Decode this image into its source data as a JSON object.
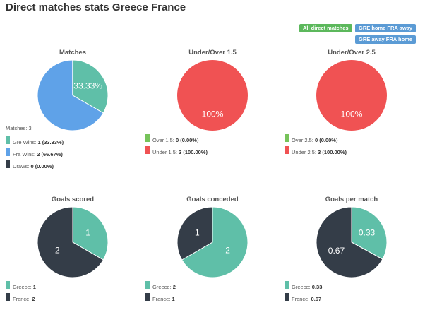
{
  "header": {
    "title": "Direct matches stats Greece France"
  },
  "filters": {
    "all_label": "All direct matches",
    "home_label": "GRE home FRA away",
    "away_label": "GRE away FRA home"
  },
  "colors": {
    "teal": "#5fbfa8",
    "blue": "#5fa2e8",
    "dark": "#343d48",
    "green": "#76c35a",
    "red": "#f05253"
  },
  "panels": [
    {
      "title": "Matches",
      "summary": "Matches: 3",
      "legend": [
        {
          "label": "Gre Wins:",
          "value": "1 (33.33%)",
          "color": "#5fbfa8"
        },
        {
          "label": "Fra Wins:",
          "value": "2 (66.67%)",
          "color": "#5fa2e8"
        },
        {
          "label": "Draws:",
          "value": "0 (0.00%)",
          "color": "#343d48"
        }
      ]
    },
    {
      "title": "Under/Over 1.5",
      "summary": "",
      "legend": [
        {
          "label": "Over 1.5:",
          "value": "0 (0.00%)",
          "color": "#76c35a"
        },
        {
          "label": "Under 1.5:",
          "value": "3 (100.00%)",
          "color": "#f05253"
        }
      ]
    },
    {
      "title": "Under/Over 2.5",
      "summary": "",
      "legend": [
        {
          "label": "Over 2.5:",
          "value": "0 (0.00%)",
          "color": "#76c35a"
        },
        {
          "label": "Under 2.5:",
          "value": "3 (100.00%)",
          "color": "#f05253"
        }
      ]
    },
    {
      "title": "Goals scored",
      "summary": "",
      "legend": [
        {
          "label": "Greece:",
          "value": "1",
          "color": "#5fbfa8"
        },
        {
          "label": "France:",
          "value": "2",
          "color": "#343d48"
        }
      ]
    },
    {
      "title": "Goals conceded",
      "summary": "",
      "legend": [
        {
          "label": "Greece:",
          "value": "2",
          "color": "#5fbfa8"
        },
        {
          "label": "France:",
          "value": "1",
          "color": "#343d48"
        }
      ]
    },
    {
      "title": "Goals per match",
      "summary": "",
      "legend": [
        {
          "label": "Greece:",
          "value": "0.33",
          "color": "#5fbfa8"
        },
        {
          "label": "France:",
          "value": "0.67",
          "color": "#343d48"
        }
      ]
    }
  ],
  "chart_data": [
    {
      "type": "pie",
      "title": "Matches",
      "slices": [
        {
          "name": "Gre Wins",
          "value": 1,
          "label": "33.33%",
          "color": "#5fbfa8"
        },
        {
          "name": "Fra Wins",
          "value": 2,
          "label": "",
          "color": "#5fa2e8"
        },
        {
          "name": "Draws",
          "value": 0,
          "label": "",
          "color": "#343d48"
        }
      ]
    },
    {
      "type": "pie",
      "title": "Under/Over 1.5",
      "slices": [
        {
          "name": "Over 1.5",
          "value": 0,
          "label": "0%",
          "color": "#76c35a"
        },
        {
          "name": "Under 1.5",
          "value": 3,
          "label": "100%",
          "color": "#f05253"
        }
      ]
    },
    {
      "type": "pie",
      "title": "Under/Over 2.5",
      "slices": [
        {
          "name": "Over 2.5",
          "value": 0,
          "label": "0%",
          "color": "#76c35a"
        },
        {
          "name": "Under 2.5",
          "value": 3,
          "label": "100%",
          "color": "#f05253"
        }
      ]
    },
    {
      "type": "pie",
      "title": "Goals scored",
      "slices": [
        {
          "name": "Greece",
          "value": 1,
          "label": "1",
          "color": "#5fbfa8"
        },
        {
          "name": "France",
          "value": 2,
          "label": "2",
          "color": "#343d48"
        }
      ]
    },
    {
      "type": "pie",
      "title": "Goals conceded",
      "slices": [
        {
          "name": "Greece",
          "value": 2,
          "label": "2",
          "color": "#5fbfa8"
        },
        {
          "name": "France",
          "value": 1,
          "label": "1",
          "color": "#343d48"
        }
      ]
    },
    {
      "type": "pie",
      "title": "Goals per match",
      "slices": [
        {
          "name": "Greece",
          "value": 0.33,
          "label": "0.33",
          "color": "#5fbfa8"
        },
        {
          "name": "France",
          "value": 0.67,
          "label": "0.67",
          "color": "#343d48"
        }
      ]
    }
  ]
}
